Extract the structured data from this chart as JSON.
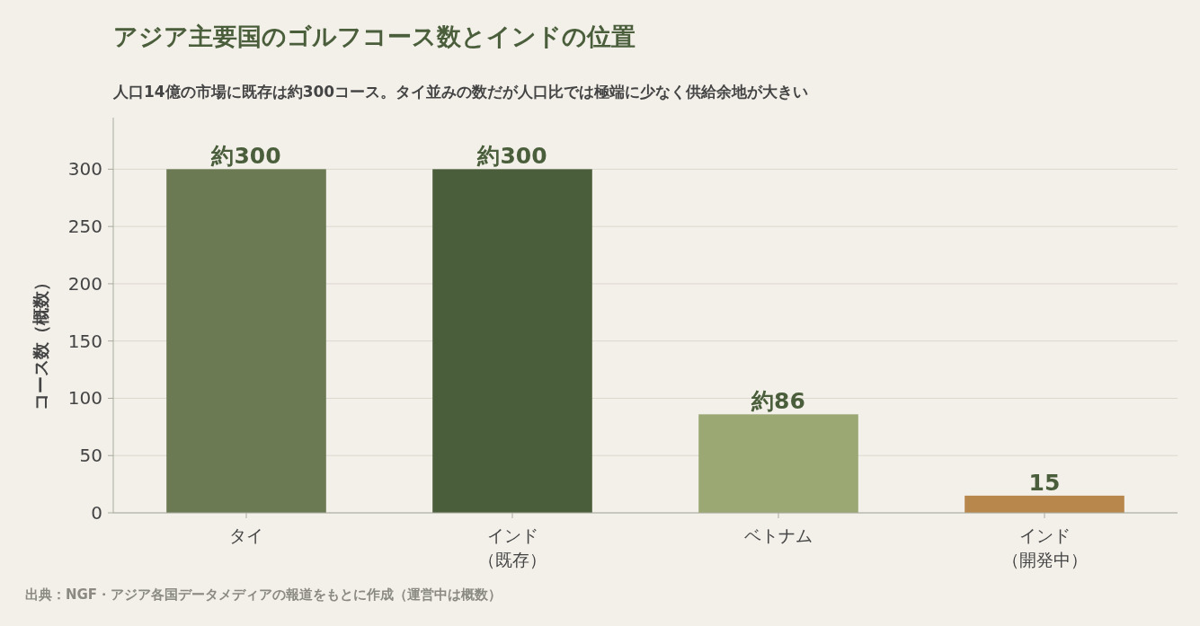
{
  "chart_data": {
    "type": "bar",
    "title": "アジア主要国のゴルフコース数とインドの位置",
    "subtitle": "人口14億の市場に既存は約300コース。タイ並みの数だが人口比では極端に少なく供給余地が大きい",
    "ylabel": "コース数（概数）",
    "categories": [
      "タイ",
      "インド（既存）",
      "ベトナム",
      "インド（開発中）"
    ],
    "values": [
      300,
      300,
      86,
      15
    ],
    "colors": [
      "#6b7a52",
      "#4a5e3b",
      "#9ba874",
      "#b8874b"
    ],
    "value_labels": [
      "約300",
      "約300",
      "約86",
      "15"
    ],
    "ylim": [
      0,
      345
    ],
    "yticks": [
      0,
      50,
      100,
      150,
      200,
      250,
      300
    ],
    "grid": "y",
    "annotations": [
      "出典：NGF・アジア各国データメディアの報道をもとに作成（運営中は概数）"
    ]
  }
}
